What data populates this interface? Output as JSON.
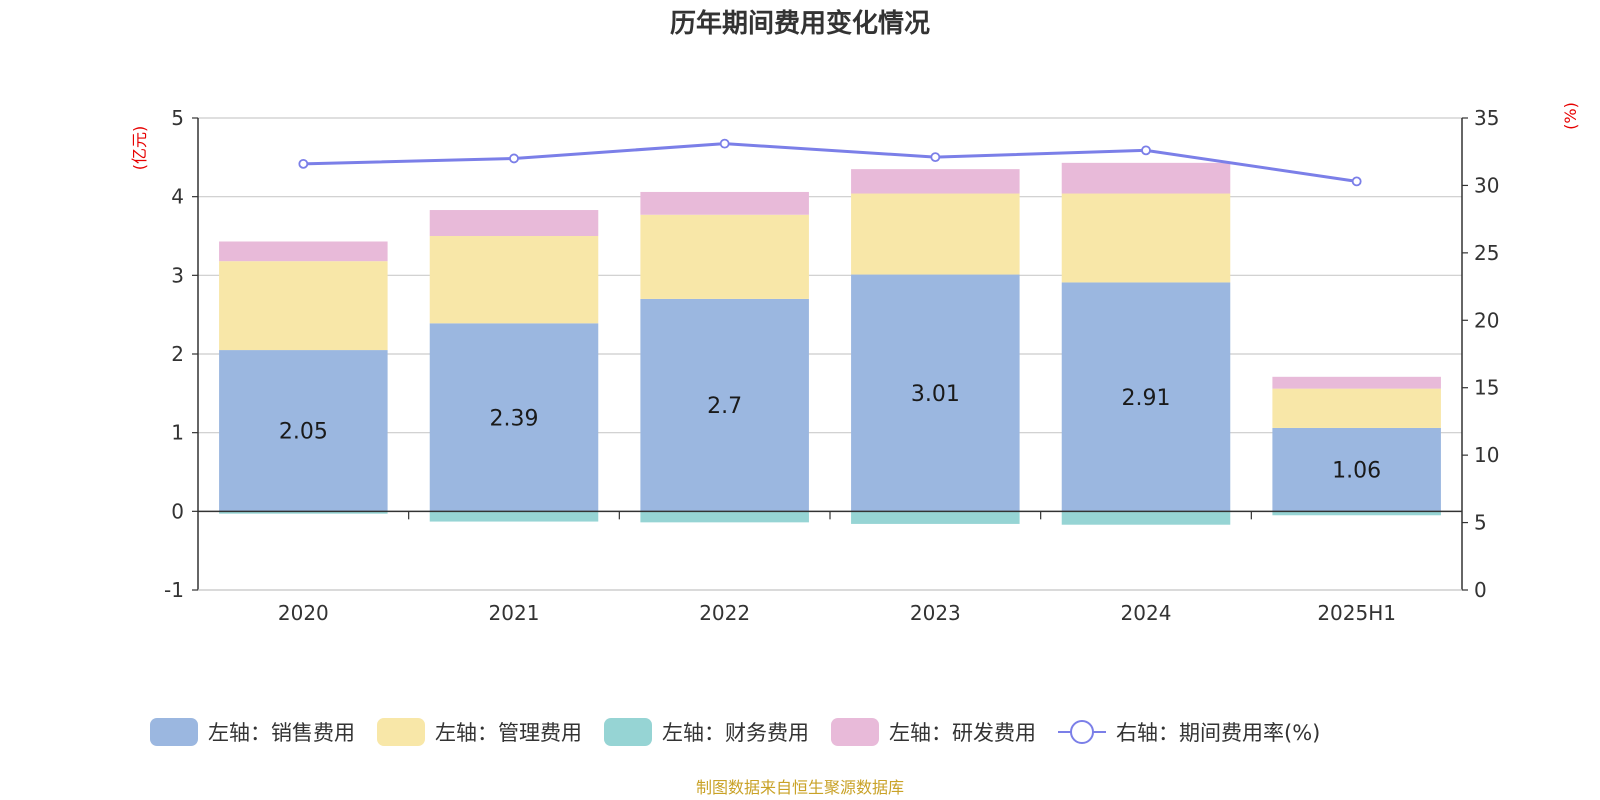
{
  "chart_data": {
    "type": "bar",
    "title": "历年期间费用变化情况",
    "categories": [
      "2020",
      "2021",
      "2022",
      "2023",
      "2024",
      "2025H1"
    ],
    "left_axis": {
      "unit": "(亿元)",
      "min": -1,
      "max": 5,
      "ticks": [
        "5",
        "4",
        "3",
        "2",
        "1",
        "0",
        "-1"
      ],
      "tick_values": [
        5,
        4,
        3,
        2,
        1,
        0,
        -1
      ]
    },
    "right_axis": {
      "unit": "(%)",
      "min": 0,
      "max": 35,
      "ticks": [
        "35",
        "30",
        "25",
        "20",
        "15",
        "10",
        "5",
        "0"
      ],
      "tick_values": [
        35,
        30,
        25,
        20,
        15,
        10,
        5,
        0
      ]
    },
    "series": [
      {
        "name": "左轴：销售费用",
        "kind": "bar",
        "color": "#9bb7e0",
        "values": [
          2.05,
          2.39,
          2.7,
          3.01,
          2.91,
          1.06
        ],
        "labels": [
          "2.05",
          "2.39",
          "2.7",
          "3.01",
          "2.91",
          "1.06"
        ]
      },
      {
        "name": "左轴：管理费用",
        "kind": "bar",
        "color": "#f8e7a8",
        "values": [
          1.13,
          1.11,
          1.07,
          1.03,
          1.13,
          0.5
        ]
      },
      {
        "name": "左轴：财务费用",
        "kind": "bar",
        "color": "#96d4d4",
        "values": [
          -0.03,
          -0.13,
          -0.14,
          -0.16,
          -0.17,
          -0.05
        ]
      },
      {
        "name": "左轴：研发费用",
        "kind": "bar",
        "color": "#e8bad9",
        "values": [
          0.25,
          0.33,
          0.29,
          0.31,
          0.39,
          0.15
        ]
      },
      {
        "name": "右轴：期间费用率(%)",
        "kind": "line",
        "color": "#7b7fe8",
        "values": [
          31.6,
          32.0,
          33.1,
          32.1,
          32.6,
          30.3
        ]
      }
    ],
    "grid": true,
    "legend_position": "bottom"
  },
  "source": "制图数据来自恒生聚源数据库"
}
